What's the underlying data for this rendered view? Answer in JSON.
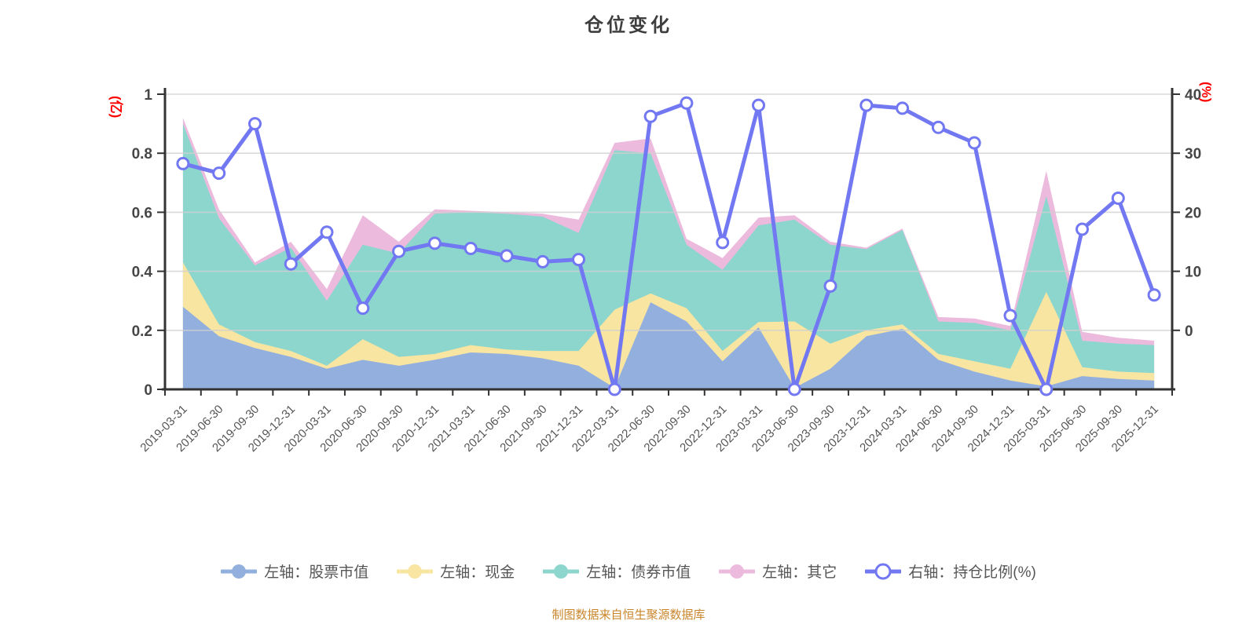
{
  "header": {
    "title": "仓位变化"
  },
  "footer": {
    "source_note": "制图数据来自恒生聚源数据库"
  },
  "colors": {
    "title_text": "#3e3e3e",
    "axis_line": "#333333",
    "grid_line": "#cfcfcf",
    "y_tick_text": "#464646",
    "x_tick_text": "#555555",
    "legend_text": "#565656",
    "axis_name_red": "#ff0000",
    "source_note_orange": "#c8862b",
    "marker_fill_white": "#ffffff"
  },
  "chart_data": {
    "type": "area",
    "title": "仓位变化",
    "legend_position": "bottom",
    "grid": true,
    "categories": [
      "2019-03-31",
      "2019-06-30",
      "2019-09-30",
      "2019-12-31",
      "2020-03-31",
      "2020-06-30",
      "2020-09-30",
      "2020-12-31",
      "2021-03-31",
      "2021-06-30",
      "2021-09-30",
      "2021-12-31",
      "2022-03-31",
      "2022-06-30",
      "2022-09-30",
      "2022-12-31",
      "2023-03-31",
      "2023-06-30",
      "2023-09-30",
      "2023-12-31",
      "2024-03-31",
      "2024-06-30",
      "2024-09-30",
      "2024-12-31",
      "2025-03-31",
      "2025-06-30",
      "2025-09-30",
      "2025-12-31"
    ],
    "left_axis": {
      "name": "(亿)",
      "name_color": "#ff0000",
      "min": 0,
      "max": 1,
      "ticks": [
        "1",
        "0.8",
        "0.6",
        "0.4",
        "0.2",
        "0"
      ]
    },
    "right_axis": {
      "name": "(%)",
      "name_color": "#ff0000",
      "min": 0,
      "max": 40,
      "ticks": [
        "40",
        "30",
        "20",
        "10",
        "0"
      ]
    },
    "series": [
      {
        "key": "stocks",
        "name": "左轴：股票市值",
        "type": "area",
        "stack": "total",
        "axis": "left",
        "color": "#93afde",
        "values": [
          0.28,
          0.18,
          0.14,
          0.11,
          0.07,
          0.1,
          0.08,
          0.1,
          0.125,
          0.12,
          0.105,
          0.08,
          0.005,
          0.295,
          0.23,
          0.095,
          0.21,
          0.005,
          0.07,
          0.18,
          0.205,
          0.1,
          0.06,
          0.03,
          0.01,
          0.045,
          0.035,
          0.03
        ]
      },
      {
        "key": "cash",
        "name": "左轴：现金",
        "type": "area",
        "stack": "total",
        "axis": "left",
        "color": "#f7e5a1",
        "values": [
          0.15,
          0.04,
          0.02,
          0.02,
          0.01,
          0.07,
          0.03,
          0.02,
          0.025,
          0.015,
          0.025,
          0.05,
          0.265,
          0.03,
          0.045,
          0.035,
          0.018,
          0.225,
          0.085,
          0.02,
          0.015,
          0.02,
          0.035,
          0.04,
          0.32,
          0.03,
          0.025,
          0.025
        ]
      },
      {
        "key": "bonds",
        "name": "左轴：债券市值",
        "type": "area",
        "stack": "total",
        "axis": "left",
        "color": "#8dd6ce",
        "values": [
          0.47,
          0.36,
          0.26,
          0.35,
          0.22,
          0.32,
          0.35,
          0.475,
          0.45,
          0.46,
          0.455,
          0.4,
          0.54,
          0.475,
          0.215,
          0.275,
          0.327,
          0.345,
          0.335,
          0.275,
          0.32,
          0.11,
          0.13,
          0.13,
          0.325,
          0.09,
          0.095,
          0.095
        ]
      },
      {
        "key": "other",
        "name": "左轴：其它",
        "type": "area",
        "stack": "total",
        "axis": "left",
        "color": "#ecbadd",
        "values": [
          0.02,
          0.03,
          0.01,
          0.02,
          0.04,
          0.1,
          0.04,
          0.015,
          0.005,
          0.005,
          0.01,
          0.045,
          0.025,
          0.05,
          0.02,
          0.04,
          0.027,
          0.015,
          0.01,
          0.005,
          0.005,
          0.015,
          0.015,
          0.015,
          0.085,
          0.03,
          0.02,
          0.015
        ]
      },
      {
        "key": "position",
        "name": "右轴：持仓比例(%)",
        "type": "line",
        "axis": "right",
        "color": "#7277f2",
        "marker": "white-circle",
        "values": [
          30.6,
          29.3,
          36.0,
          17.0,
          21.3,
          11.0,
          18.7,
          19.8,
          19.1,
          18.1,
          17.3,
          17.6,
          0,
          37.0,
          38.8,
          19.9,
          38.5,
          0,
          14.0,
          38.5,
          38.1,
          35.5,
          33.4,
          10.0,
          0,
          21.7,
          25.9,
          12.8
        ]
      }
    ]
  }
}
